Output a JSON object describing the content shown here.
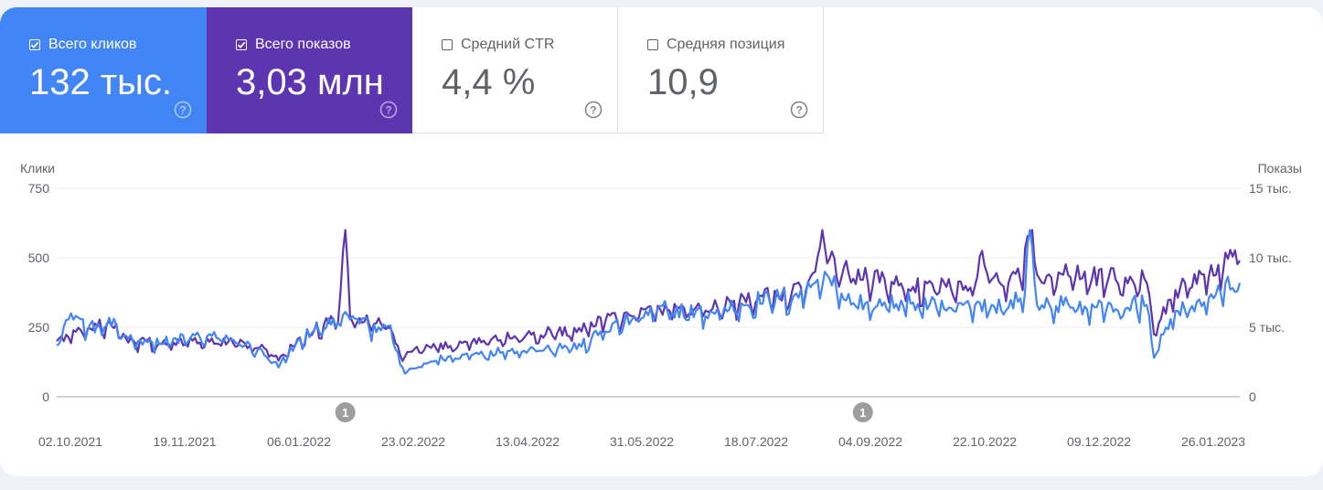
{
  "metrics": {
    "clicks": {
      "label": "Всего кликов",
      "value": "132 тыс.",
      "checked": true,
      "color": "#4285f4",
      "help_icon": "help-circle-icon"
    },
    "impressions": {
      "label": "Всего показов",
      "value": "3,03 млн",
      "checked": true,
      "color": "#5e35b1",
      "help_icon": "help-circle-icon"
    },
    "ctr": {
      "label": "Средний CTR",
      "value": "4,4 %",
      "checked": false,
      "help_icon": "help-circle-icon"
    },
    "position": {
      "label": "Средняя позиция",
      "value": "10,9",
      "checked": false,
      "help_icon": "help-circle-icon"
    }
  },
  "chart_data": {
    "type": "line",
    "ylabel_left": "Клики",
    "ylabel_right": "Показы",
    "ylim_left": [
      0,
      750
    ],
    "ylim_right": [
      0,
      15000
    ],
    "yticks_left": [
      "750",
      "500",
      "250",
      "0"
    ],
    "yticks_right": [
      "15 тыс.",
      "10 тыс.",
      "5 тыс.",
      "0"
    ],
    "x_start": "2021-10-02",
    "x_end": "2023-02-10",
    "x_ticks": [
      "02.10.2021",
      "19.11.2021",
      "06.01.2022",
      "23.02.2022",
      "13.04.2022",
      "31.05.2022",
      "18.07.2022",
      "04.09.2022",
      "22.10.2022",
      "09.12.2022",
      "26.01.2023"
    ],
    "grid": true,
    "annotations": [
      {
        "date": "2022-01-31",
        "label": "1"
      },
      {
        "date": "2022-09-05",
        "label": "1"
      }
    ],
    "series": [
      {
        "name": "Всего кликов",
        "axis": "left",
        "color": "#4285f4",
        "keypoints": [
          [
            "2021-10-02",
            185
          ],
          [
            "2021-10-08",
            300
          ],
          [
            "2021-10-15",
            240
          ],
          [
            "2021-10-25",
            255
          ],
          [
            "2021-11-01",
            210
          ],
          [
            "2021-11-15",
            190
          ],
          [
            "2021-12-01",
            215
          ],
          [
            "2021-12-15",
            205
          ],
          [
            "2021-12-28",
            150
          ],
          [
            "2022-01-03",
            105
          ],
          [
            "2022-01-10",
            185
          ],
          [
            "2022-01-18",
            240
          ],
          [
            "2022-01-28",
            265
          ],
          [
            "2022-02-03",
            290
          ],
          [
            "2022-02-10",
            245
          ],
          [
            "2022-02-18",
            255
          ],
          [
            "2022-02-23",
            115
          ],
          [
            "2022-02-26",
            90
          ],
          [
            "2022-03-10",
            130
          ],
          [
            "2022-03-25",
            150
          ],
          [
            "2022-04-10",
            165
          ],
          [
            "2022-04-25",
            175
          ],
          [
            "2022-05-10",
            180
          ],
          [
            "2022-05-20",
            235
          ],
          [
            "2022-05-31",
            275
          ],
          [
            "2022-06-15",
            310
          ],
          [
            "2022-07-01",
            290
          ],
          [
            "2022-07-18",
            330
          ],
          [
            "2022-08-01",
            350
          ],
          [
            "2022-08-12",
            365
          ],
          [
            "2022-08-16",
            410
          ],
          [
            "2022-08-20",
            450
          ],
          [
            "2022-08-28",
            350
          ],
          [
            "2022-09-10",
            320
          ],
          [
            "2022-09-25",
            335
          ],
          [
            "2022-10-10",
            310
          ],
          [
            "2022-10-22",
            330
          ],
          [
            "2022-11-05",
            320
          ],
          [
            "2022-11-12",
            380
          ],
          [
            "2022-11-14",
            600
          ],
          [
            "2022-11-17",
            330
          ],
          [
            "2022-12-01",
            320
          ],
          [
            "2022-12-20",
            315
          ],
          [
            "2023-01-02",
            330
          ],
          [
            "2023-01-05",
            140
          ],
          [
            "2023-01-12",
            280
          ],
          [
            "2023-01-26",
            340
          ],
          [
            "2023-02-10",
            410
          ]
        ]
      },
      {
        "name": "Всего показов",
        "axis": "right",
        "color": "#5e35b1",
        "keypoints": [
          [
            "2021-10-02",
            4000
          ],
          [
            "2021-10-15",
            4900
          ],
          [
            "2021-10-25",
            5100
          ],
          [
            "2021-11-01",
            3900
          ],
          [
            "2021-11-15",
            3800
          ],
          [
            "2021-12-01",
            3900
          ],
          [
            "2021-12-15",
            3850
          ],
          [
            "2021-12-28",
            3500
          ],
          [
            "2022-01-03",
            2600
          ],
          [
            "2022-01-10",
            3700
          ],
          [
            "2022-01-18",
            4800
          ],
          [
            "2022-01-28",
            5400
          ],
          [
            "2022-01-31",
            12000
          ],
          [
            "2022-02-02",
            5800
          ],
          [
            "2022-02-10",
            5200
          ],
          [
            "2022-02-18",
            5000
          ],
          [
            "2022-02-23",
            3000
          ],
          [
            "2022-03-10",
            3500
          ],
          [
            "2022-03-25",
            3900
          ],
          [
            "2022-04-10",
            4200
          ],
          [
            "2022-04-25",
            4500
          ],
          [
            "2022-05-10",
            4700
          ],
          [
            "2022-05-20",
            5400
          ],
          [
            "2022-05-31",
            5800
          ],
          [
            "2022-06-15",
            6300
          ],
          [
            "2022-07-01",
            6200
          ],
          [
            "2022-07-18",
            6800
          ],
          [
            "2022-08-01",
            7200
          ],
          [
            "2022-08-12",
            7600
          ],
          [
            "2022-08-16",
            9000
          ],
          [
            "2022-08-19",
            12000
          ],
          [
            "2022-08-21",
            9600
          ],
          [
            "2022-09-01",
            8500
          ],
          [
            "2022-09-20",
            8000
          ],
          [
            "2022-10-05",
            7600
          ],
          [
            "2022-10-22",
            8000
          ],
          [
            "2022-10-25",
            10500
          ],
          [
            "2022-10-28",
            8200
          ],
          [
            "2022-11-10",
            8400
          ],
          [
            "2022-11-14",
            11600
          ],
          [
            "2022-11-18",
            8500
          ],
          [
            "2022-12-01",
            8600
          ],
          [
            "2022-12-20",
            8400
          ],
          [
            "2023-01-02",
            8200
          ],
          [
            "2023-01-05",
            4500
          ],
          [
            "2023-01-12",
            7000
          ],
          [
            "2023-01-26",
            8800
          ],
          [
            "2023-02-10",
            9800
          ]
        ]
      }
    ]
  }
}
